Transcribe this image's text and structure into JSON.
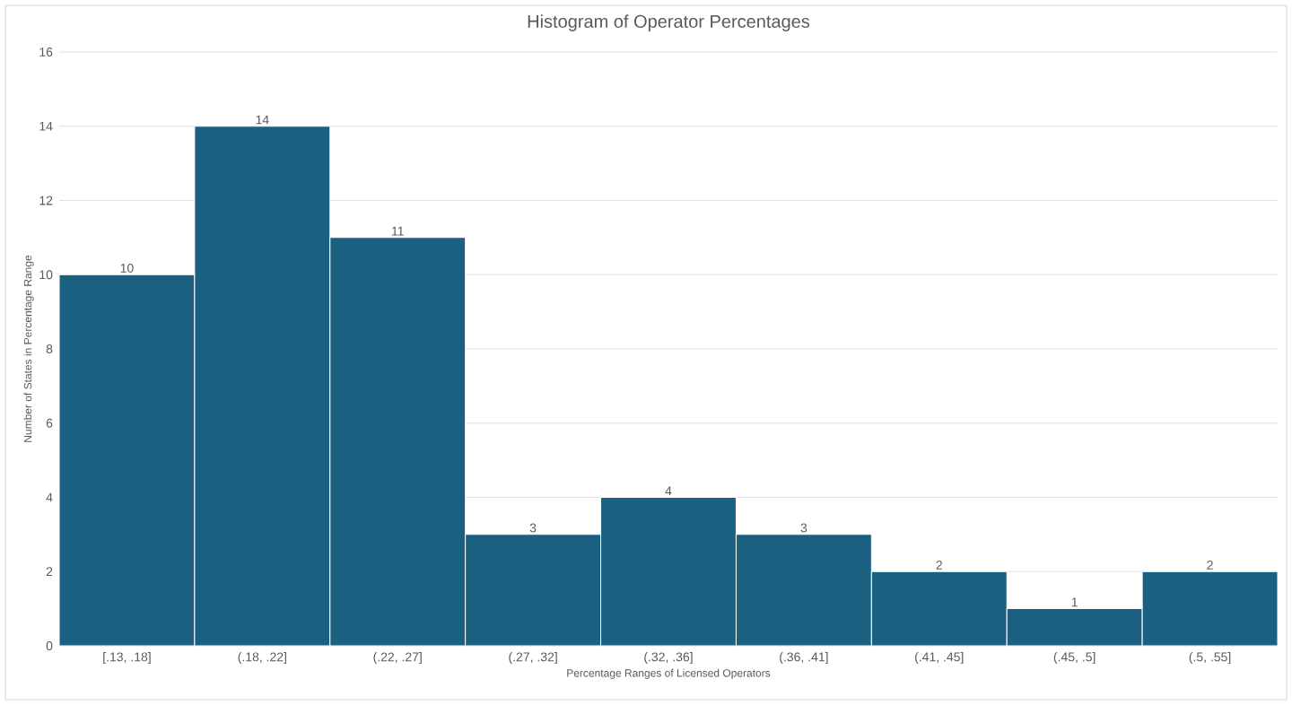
{
  "chart_data": {
    "type": "bar",
    "title": "Histogram of Operator Percentages",
    "xlabel": "Percentage Ranges of Licensed Operators",
    "ylabel": "Number of States in Percentage Range",
    "categories": [
      "[.13, .18]",
      "(.18, .22]",
      "(.22, .27]",
      "(.27, .32]",
      "(.32, .36]",
      "(.36, .41]",
      "(.41, .45]",
      "(.45, .5]",
      "(.5, .55]"
    ],
    "values": [
      10,
      14,
      11,
      3,
      4,
      3,
      2,
      1,
      2
    ],
    "color": "#1b6080",
    "ylim": [
      0,
      16
    ],
    "yticks": [
      0,
      2,
      4,
      6,
      8,
      10,
      12,
      14,
      16
    ],
    "grid": "y",
    "data_labels": true
  }
}
